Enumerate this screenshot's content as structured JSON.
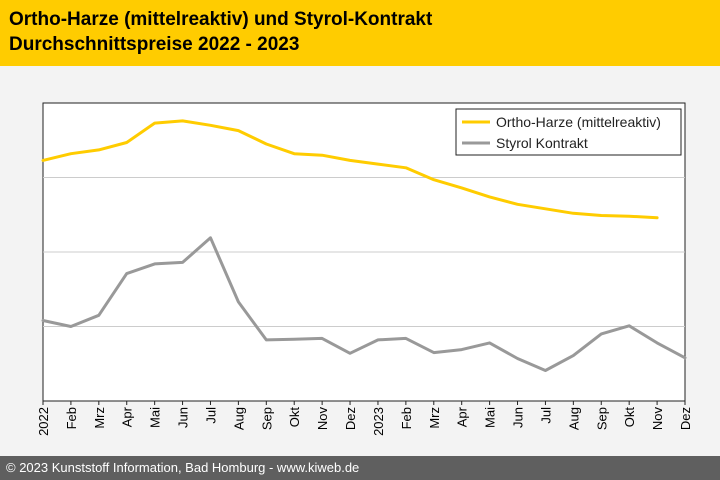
{
  "header": {
    "title_line1": "Ortho-Harze (mittelreaktiv) und Styrol-Kontrakt",
    "title_line2": "Durchschnittspreise 2022 - 2023"
  },
  "footer": {
    "copyright": "© 2023 Kunststoff Information, Bad Homburg - www.kiweb.de"
  },
  "colors": {
    "header_bg": "#ffcc00",
    "chart_bg": "#f3f3f3",
    "footer_bg": "#5f5f5f",
    "ortho": "#ffcc00",
    "styrol": "#999999"
  },
  "chart_data": {
    "type": "line",
    "title": "",
    "xlabel": "",
    "ylabel": "",
    "y_ticks_labeled": false,
    "grid": "horizontal",
    "legend_position": "top-right",
    "categories": [
      "2022",
      "Feb",
      "Mrz",
      "Apr",
      "Mai",
      "Jun",
      "Jul",
      "Aug",
      "Sep",
      "Okt",
      "Nov",
      "Dez",
      "2023",
      "Feb",
      "Mrz",
      "Apr",
      "Mai",
      "Jun",
      "Jul",
      "Aug",
      "Sep",
      "Okt",
      "Nov",
      "Dez"
    ],
    "ylim": [
      0,
      4
    ],
    "series": [
      {
        "name": "Ortho-Harze (mittelreaktiv)",
        "color": "#ffcc00",
        "values": [
          3.23,
          3.32,
          3.37,
          3.47,
          3.73,
          3.76,
          3.7,
          3.63,
          3.45,
          3.32,
          3.3,
          3.23,
          3.18,
          3.13,
          2.97,
          2.86,
          2.74,
          2.64,
          2.58,
          2.52,
          2.49,
          2.48,
          2.46,
          null
        ]
      },
      {
        "name": "Styrol Kontrakt",
        "color": "#999999",
        "values": [
          1.08,
          1.0,
          1.15,
          1.71,
          1.84,
          1.86,
          2.19,
          1.33,
          0.82,
          0.83,
          0.84,
          0.64,
          0.82,
          0.84,
          0.65,
          0.69,
          0.78,
          0.57,
          0.41,
          0.61,
          0.9,
          1.01,
          0.78,
          0.58
        ]
      }
    ]
  }
}
